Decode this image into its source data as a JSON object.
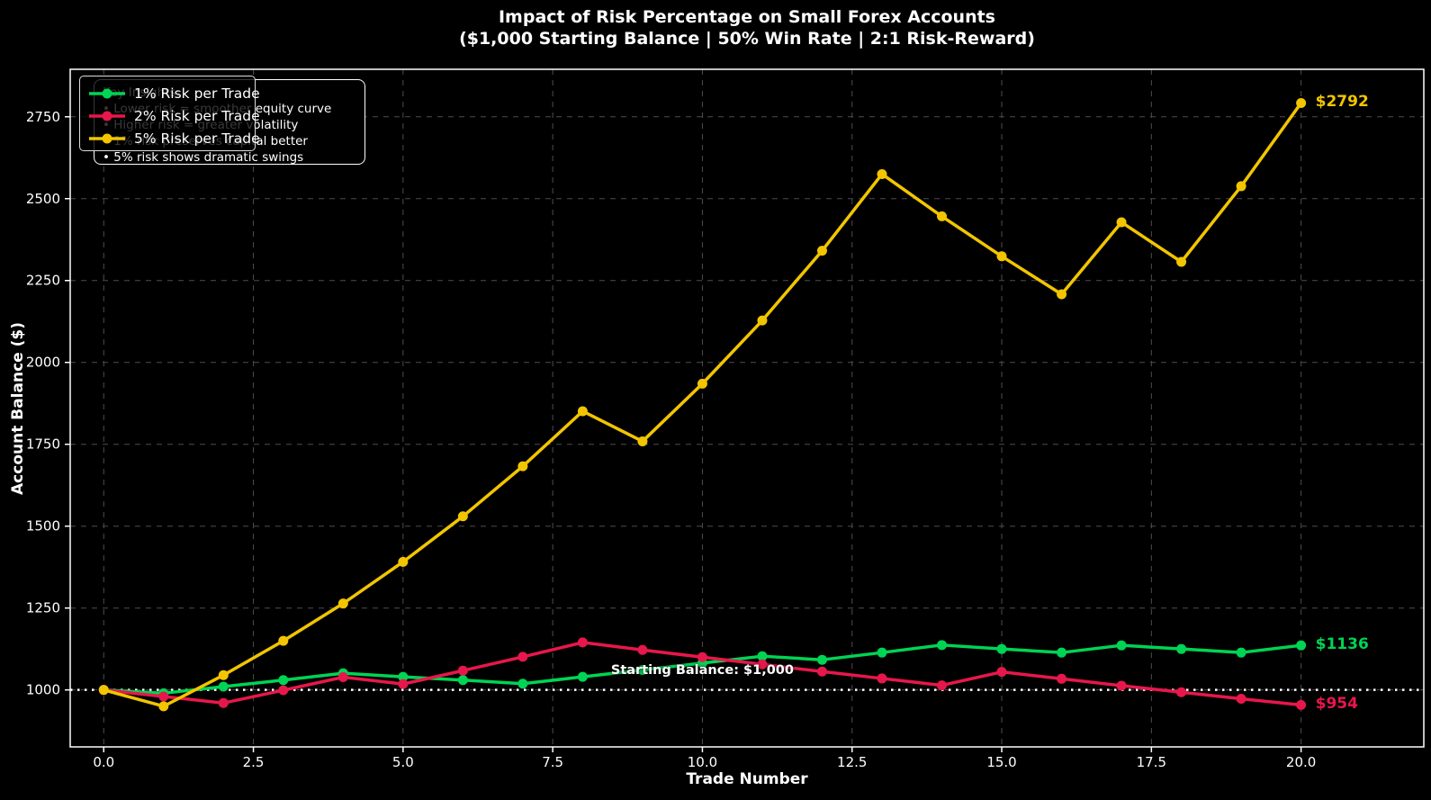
{
  "chart_data": {
    "type": "line",
    "title": "Impact of Risk Percentage on Small Forex Accounts",
    "subtitle": "($1,000 Starting Balance | 50% Win Rate | 2:1 Risk-Reward)",
    "xlabel": "Trade Number",
    "ylabel": "Account Balance ($)",
    "x": [
      0,
      1,
      2,
      3,
      4,
      5,
      6,
      7,
      8,
      9,
      10,
      11,
      12,
      13,
      14,
      15,
      16,
      17,
      18,
      19,
      20
    ],
    "series": [
      {
        "name": "1% Risk per Trade",
        "color": "#00d454",
        "end_label": "$1136",
        "values": [
          1000,
          990,
          1010,
          1030,
          1051,
          1040,
          1030,
          1019,
          1040,
          1061,
          1082,
          1103,
          1092,
          1114,
          1137,
          1125,
          1114,
          1136,
          1125,
          1114,
          1136
        ]
      },
      {
        "name": "2% Risk per Trade",
        "color": "#e8174b",
        "end_label": "$954",
        "values": [
          1000,
          980,
          960,
          999,
          1039,
          1018,
          1059,
          1101,
          1145,
          1122,
          1100,
          1078,
          1056,
          1035,
          1014,
          1055,
          1034,
          1013,
          993,
          973,
          954
        ]
      },
      {
        "name": "5% Risk per Trade",
        "color": "#f2c500",
        "end_label": "$2792",
        "values": [
          1000,
          950,
          1045,
          1150,
          1264,
          1391,
          1530,
          1683,
          1851,
          1759,
          1935,
          2128,
          2341,
          2575,
          2446,
          2324,
          2208,
          2428,
          2307,
          2538,
          2792
        ]
      }
    ],
    "x_tick_labels": [
      "0.0",
      "2.5",
      "5.0",
      "7.5",
      "10.0",
      "12.5",
      "15.0",
      "17.5",
      "20.0"
    ],
    "x_tick_values": [
      0,
      2.5,
      5,
      7.5,
      10,
      12.5,
      15,
      17.5,
      20
    ],
    "y_tick_values": [
      1000,
      1250,
      1500,
      1750,
      2000,
      2250,
      2500,
      2750
    ],
    "xlim": [
      -0.56,
      22.05
    ],
    "ylim": [
      826,
      2895
    ],
    "grid": {
      "on": true,
      "style": "dashed",
      "color": "#4d4d4d"
    },
    "legend": {
      "position": "upper-left"
    },
    "reference_line": {
      "value": 1000,
      "style": "dotted",
      "color": "#ffffff",
      "label": "Starting Balance: $1,000"
    },
    "annotations": {
      "insights": {
        "heading": "Key Insights:",
        "bullets": [
          "• Lower risk = smoother equity curve",
          "• Higher risk = greater volatility",
          "• 1% risk preserves capital better",
          "• 5% risk shows dramatic swings"
        ]
      }
    },
    "colors": {
      "background": "#000000",
      "text": "#ffffff"
    }
  }
}
